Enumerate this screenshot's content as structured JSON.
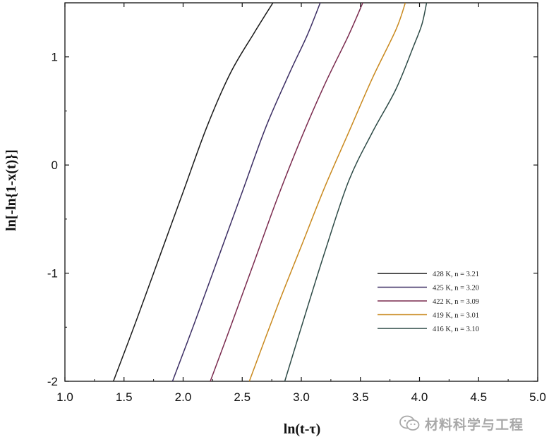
{
  "chart_data": {
    "type": "line",
    "title": "",
    "xlabel": "ln(t-τ)",
    "ylabel": "ln[-ln{1-x(t)}]",
    "xlim": [
      1.0,
      5.0
    ],
    "ylim": [
      -2,
      1.5
    ],
    "x_ticks": [
      "1.0",
      "1.5",
      "2.0",
      "2.5",
      "3.0",
      "3.5",
      "4.0",
      "4.5",
      "5.0"
    ],
    "y_ticks": [
      "-2",
      "-1",
      "0",
      "1"
    ],
    "grid": false,
    "legend_position": "bottom-right",
    "series": [
      {
        "name": "428 K, n = 3.21",
        "color": "#1a1a1a",
        "points": [
          [
            1.41,
            -2.0
          ],
          [
            1.6,
            -1.45
          ],
          [
            1.8,
            -0.85
          ],
          [
            2.0,
            -0.25
          ],
          [
            2.2,
            0.35
          ],
          [
            2.4,
            0.85
          ],
          [
            2.6,
            1.22
          ],
          [
            2.76,
            1.5
          ]
        ]
      },
      {
        "name": "425 K, n = 3.20",
        "color": "#3b2d63",
        "points": [
          [
            1.91,
            -2.0
          ],
          [
            2.1,
            -1.45
          ],
          [
            2.3,
            -0.85
          ],
          [
            2.5,
            -0.25
          ],
          [
            2.7,
            0.35
          ],
          [
            2.9,
            0.85
          ],
          [
            3.05,
            1.2
          ],
          [
            3.16,
            1.5
          ]
        ]
      },
      {
        "name": "422 K, n = 3.09",
        "color": "#7a2a4e",
        "points": [
          [
            2.23,
            -2.0
          ],
          [
            2.4,
            -1.5
          ],
          [
            2.6,
            -0.9
          ],
          [
            2.8,
            -0.3
          ],
          [
            3.0,
            0.25
          ],
          [
            3.2,
            0.75
          ],
          [
            3.4,
            1.2
          ],
          [
            3.52,
            1.5
          ]
        ]
      },
      {
        "name": "419 K, n = 3.01",
        "color": "#c9891e",
        "points": [
          [
            2.56,
            -2.0
          ],
          [
            2.8,
            -1.3
          ],
          [
            3.0,
            -0.75
          ],
          [
            3.2,
            -0.2
          ],
          [
            3.4,
            0.3
          ],
          [
            3.6,
            0.8
          ],
          [
            3.8,
            1.25
          ],
          [
            3.88,
            1.5
          ]
        ]
      },
      {
        "name": "416 K, n = 3.10",
        "color": "#2d4a46",
        "points": [
          [
            2.86,
            -2.0
          ],
          [
            3.0,
            -1.5
          ],
          [
            3.2,
            -0.8
          ],
          [
            3.4,
            -0.15
          ],
          [
            3.6,
            0.3
          ],
          [
            3.8,
            0.7
          ],
          [
            3.95,
            1.1
          ],
          [
            4.02,
            1.3
          ],
          [
            4.06,
            1.5
          ]
        ]
      }
    ]
  },
  "watermark": {
    "text": "材料科学与工程",
    "icon": "wechat-icon"
  }
}
